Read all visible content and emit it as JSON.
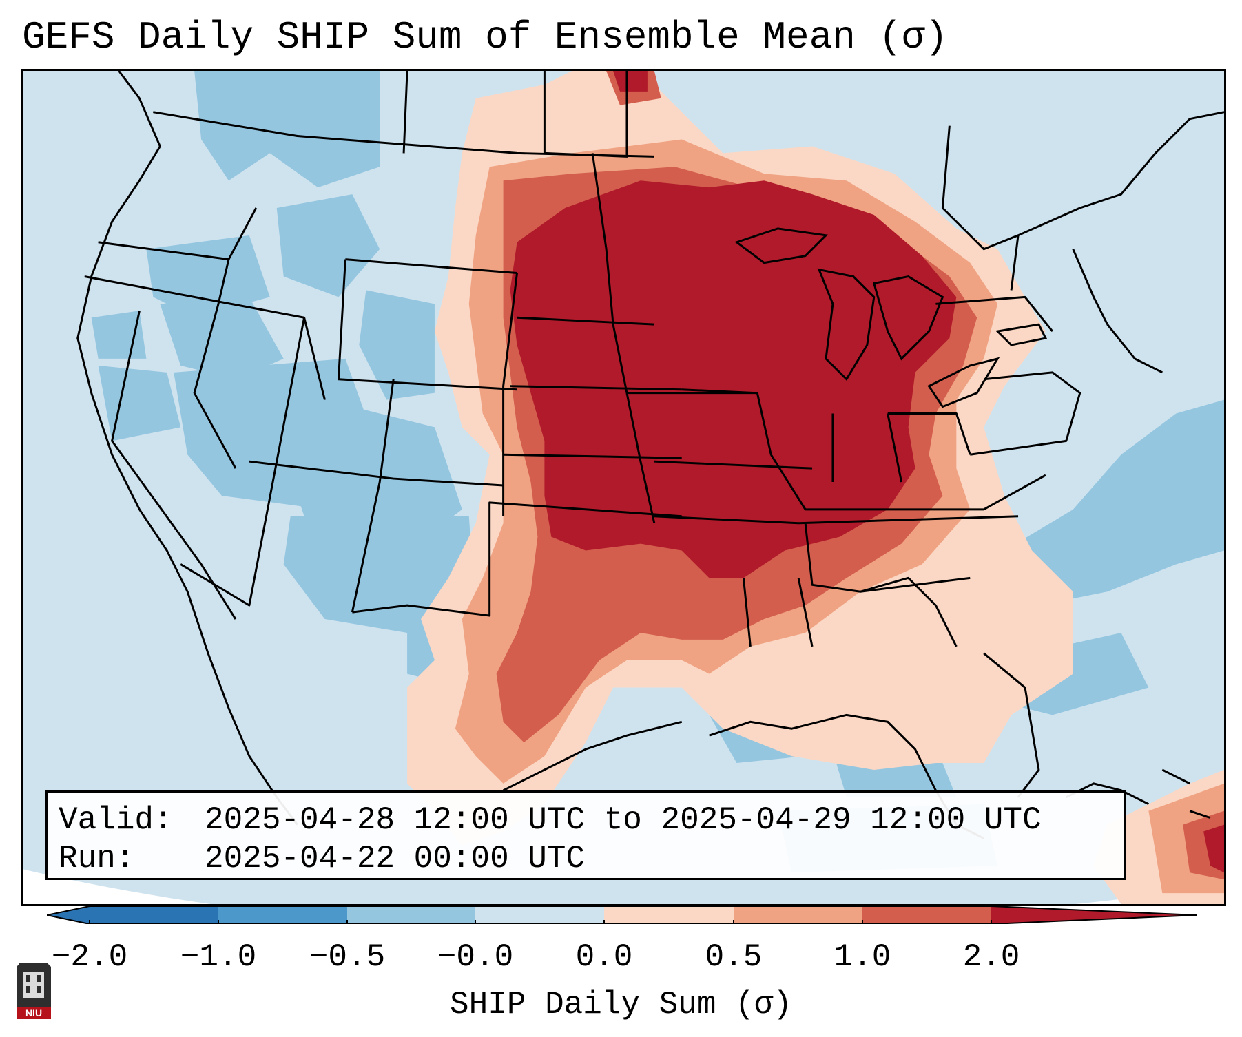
{
  "title": "GEFS Daily SHIP Sum of Ensemble Mean (σ)",
  "info": {
    "valid_label": "Valid:",
    "valid_value": "2025-04-28 12:00 UTC to 2025-04-29 12:00 UTC",
    "run_label": "Run:",
    "run_value": "2025-04-22 00:00 UTC"
  },
  "colorbar": {
    "title": "SHIP Daily Sum (σ)",
    "ticks": [
      "−2.0",
      "−1.0",
      "−0.5",
      "−0.0",
      "0.0",
      "0.5",
      "1.0",
      "2.0"
    ],
    "colors": [
      "#2b74b4",
      "#4c98cb",
      "#95c6e0",
      "#cfe3ef",
      "#fbd8c5",
      "#f0a383",
      "#d35e4e",
      "#b11a2a"
    ],
    "extend": "both"
  },
  "map": {
    "projection": "Lambert conformal",
    "region": "Continental United States",
    "field": "SHIP daily sum anomaly",
    "legend_colors": {
      "strong_negative": "#2b74b4",
      "moderate_negative": "#95c6e0",
      "near_zero": "#cfe3ef",
      "slight_positive": "#fbd8c5",
      "moderate_positive": "#f0a383",
      "strong_positive": "#d35e4e",
      "extreme_positive": "#b11a2a"
    }
  },
  "logo": {
    "text": "NIU",
    "name": "niu-logo"
  }
}
